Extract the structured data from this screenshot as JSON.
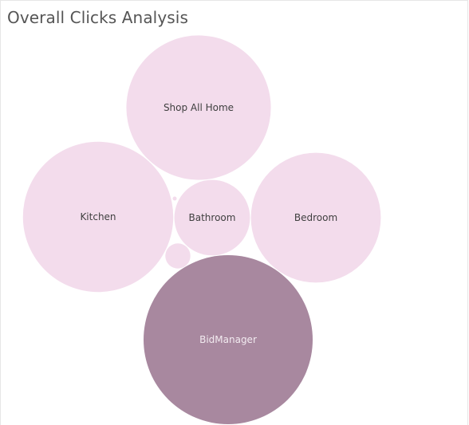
{
  "title": "Overall Clicks Analysis",
  "colors": {
    "light_bubble": "#f3dcec",
    "dark_bubble": "#a8889f",
    "light_text": "#3f3f3f",
    "dark_text": "#f2ebf0",
    "frame": "#e6e6e6"
  },
  "chart_data": {
    "type": "packed-bubble",
    "title": "Overall Clicks Analysis",
    "measure": "Clicks (relative, estimated from bubble area)",
    "bubbles": [
      {
        "label": "BidManager",
        "value": 100,
        "highlighted": true
      },
      {
        "label": "Kitchen",
        "value": 79,
        "highlighted": false
      },
      {
        "label": "Shop All Home",
        "value": 73,
        "highlighted": false
      },
      {
        "label": "Bedroom",
        "value": 59,
        "highlighted": false
      },
      {
        "label": "Bathroom",
        "value": 20,
        "highlighted": false
      },
      {
        "label": "",
        "value": 2.2,
        "highlighted": false
      },
      {
        "label": "",
        "value": 0.03,
        "highlighted": false
      }
    ]
  }
}
